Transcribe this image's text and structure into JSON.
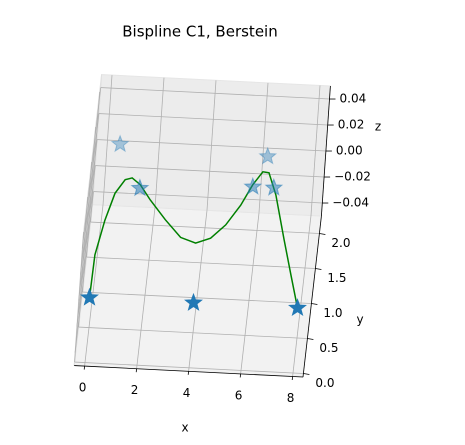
{
  "chart_data": {
    "type": "scatter3d",
    "title": "Bispline C1, Berstein",
    "xlabel": "x",
    "ylabel": "y",
    "zlabel": "z",
    "xlim": [
      -0.4,
      8.4
    ],
    "ylim": [
      -0.05,
      2.25
    ],
    "zlim": [
      -0.05,
      0.05
    ],
    "xticks": [
      0,
      2,
      4,
      6,
      8
    ],
    "yticks": [
      {
        "value": 0,
        "label": "0.0"
      },
      {
        "value": 0.5,
        "label": "0.5"
      },
      {
        "value": 1,
        "label": "1.0"
      },
      {
        "value": 1.5,
        "label": "1.5"
      },
      {
        "value": 2,
        "label": "2.0"
      }
    ],
    "zticks": [
      {
        "value": -0.04,
        "label": "−0.04"
      },
      {
        "value": -0.02,
        "label": "−0.02"
      },
      {
        "value": 0,
        "label": "0.00"
      },
      {
        "value": 0.02,
        "label": "0.02"
      },
      {
        "value": 0.04,
        "label": "0.04"
      }
    ],
    "grid": true,
    "points": {
      "color": "#1f77b4",
      "marker": "star",
      "x": [
        0,
        1.45,
        4,
        5.76,
        6.57,
        8,
        0.5,
        6.2
      ],
      "y": [
        0,
        1.59,
        0,
        1.69,
        1.69,
        0,
        2.2,
        2.13
      ],
      "z": [
        0,
        0,
        0,
        0,
        0,
        0,
        0,
        0
      ]
    },
    "curve": {
      "color": "green",
      "x": [
        0,
        0.02,
        0.25,
        0.52,
        0.85,
        1.11,
        1.45,
        1.9,
        2.56,
        3.22,
        3.82,
        4.37,
        4.89,
        5.38,
        5.75,
        6.08,
        6.32,
        6.68,
        7.19,
        7.61,
        8
      ],
      "y": [
        0,
        0.61,
        1.11,
        1.5,
        1.7,
        1.73,
        1.64,
        1.43,
        1.16,
        0.92,
        0.85,
        0.93,
        1.13,
        1.42,
        1.72,
        1.91,
        1.9,
        1.59,
        0.96,
        0.46,
        0
      ],
      "z": [
        0,
        0,
        0,
        0,
        0,
        0,
        0,
        0,
        0,
        0,
        0,
        0,
        0,
        0,
        0,
        0,
        0,
        0,
        0,
        0,
        0
      ]
    }
  }
}
